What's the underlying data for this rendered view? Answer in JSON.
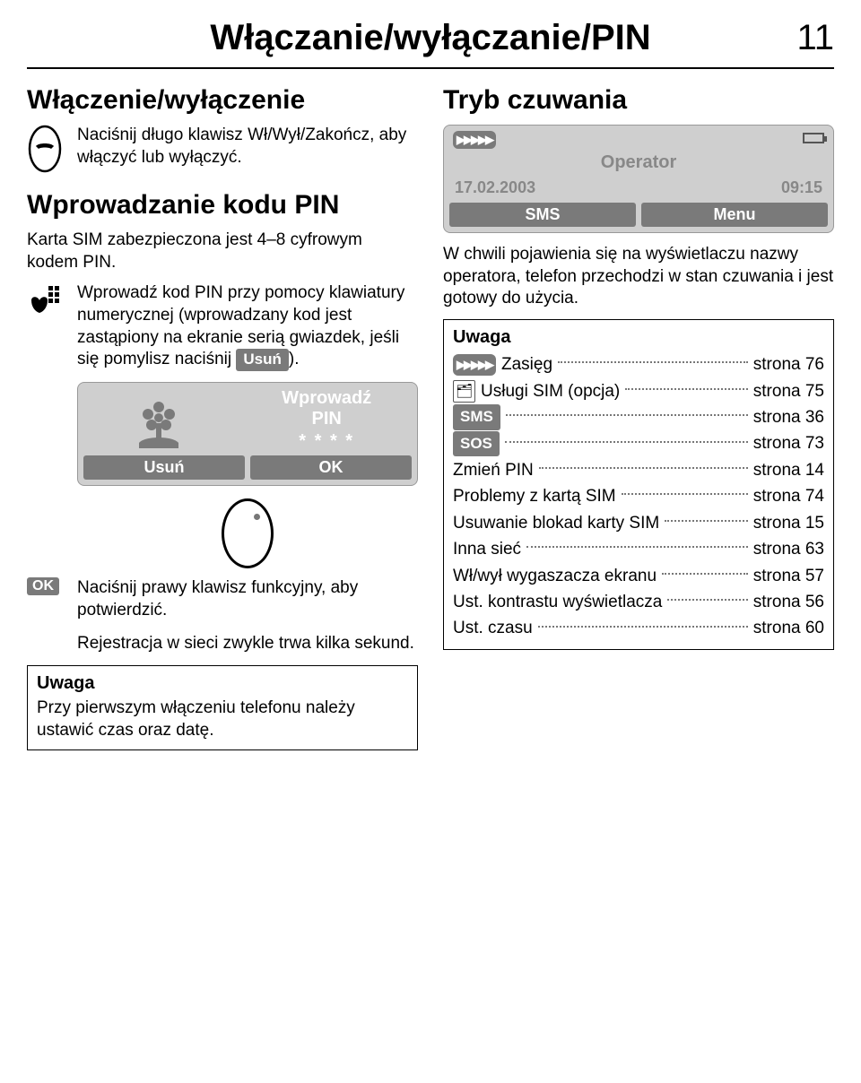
{
  "page": {
    "title": "Włączanie/wyłączanie/PIN",
    "number": "11"
  },
  "left": {
    "h1": "Włączenie/wyłączenie",
    "power_instr": "Naciśnij długo klawisz Wł/Wył/Zakończ, aby włączyć lub wyłączyć.",
    "h2": "Wprowadzanie kodu PIN",
    "sim_line": "Karta SIM zabezpieczona jest 4–8 cyfrowym kodem PIN.",
    "pin_instr_pre": "Wprowadź kod PIN przy pomocy klawiatury numerycznej (wprowadzany kod jest zastąpiony na ekranie serią gwiazdek, jeśli się pomylisz naciśnij ",
    "pin_instr_soft": "Usuń",
    "pin_instr_post": ").",
    "screen": {
      "line1": "Wprowadź",
      "line2": "PIN",
      "stars": "* * * *",
      "left_soft": "Usuń",
      "right_soft": "OK"
    },
    "ok_label": "OK",
    "ok_text": "Naciśnij prawy klawisz funkcyjny, aby potwierdzić.",
    "reg_text": "Rejestracja w sieci zwykle trwa kilka sekund.",
    "uwaga_title": "Uwaga",
    "uwaga_text": "Przy pierwszym włączeniu telefonu należy ustawić czas oraz datę."
  },
  "right": {
    "h1": "Tryb czuwania",
    "screen": {
      "operator": "Operator",
      "date": "17.02.2003",
      "time": "09:15",
      "left_soft": "SMS",
      "right_soft": "Menu"
    },
    "body": "W chwili pojawienia się na wyświetlaczu nazwy operatora, telefon przechodzi w stan czuwania i jest gotowy do użycia.",
    "uwaga_title": "Uwaga",
    "list": [
      {
        "icon": "signal",
        "label": "Zasięg",
        "page": "strona 76"
      },
      {
        "icon": "sim",
        "label": "Usługi SIM (opcja)",
        "page": "strona 75"
      },
      {
        "icon": "sms",
        "label": "",
        "page": "strona 36"
      },
      {
        "icon": "sos",
        "label": "",
        "page": "strona 73"
      },
      {
        "icon": "",
        "label": "Zmień PIN",
        "page": "strona 14"
      },
      {
        "icon": "",
        "label": "Problemy z kartą SIM",
        "page": "strona 74"
      },
      {
        "icon": "",
        "label": "Usuwanie blokad karty SIM",
        "page": "strona 15"
      },
      {
        "icon": "",
        "label": "Inna sieć",
        "page": "strona 63"
      },
      {
        "icon": "",
        "label": "Wł/wył wygaszacza ekranu",
        "page": "strona 57"
      },
      {
        "icon": "",
        "label": "Ust. kontrastu wyświetlacza",
        "page": "strona 56"
      },
      {
        "icon": "",
        "label": "Ust. czasu",
        "page": "strona 60"
      }
    ],
    "sms_soft": "SMS",
    "sos_soft": "SOS"
  },
  "colors": {
    "softbtn_bg": "#7a7a7a",
    "screen_bg": "#cfcfcf",
    "muted": "#888888"
  }
}
